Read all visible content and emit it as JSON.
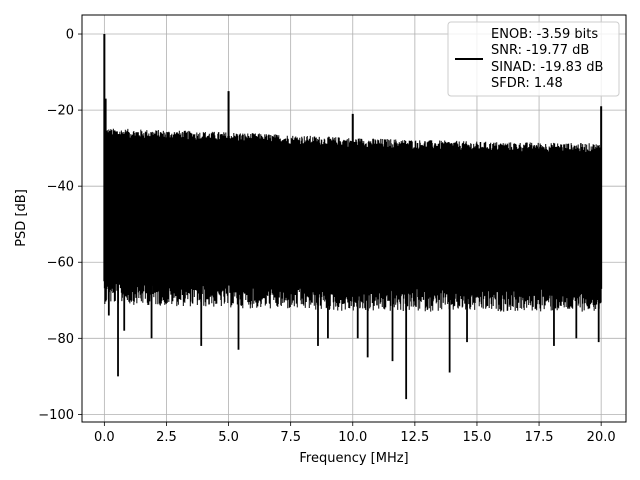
{
  "chart_data": {
    "type": "line",
    "title": "",
    "xlabel": "Frequency [MHz]",
    "ylabel": "PSD [dB]",
    "xlim": [
      -0.9,
      21.0
    ],
    "ylim": [
      -102,
      5
    ],
    "x_ticks": [
      0.0,
      2.5,
      5.0,
      7.5,
      10.0,
      12.5,
      15.0,
      17.5,
      20.0
    ],
    "x_tick_labels": [
      "0.0",
      "2.5",
      "5.0",
      "7.5",
      "10.0",
      "12.5",
      "15.0",
      "17.5",
      "20.0"
    ],
    "y_ticks": [
      0,
      -20,
      -40,
      -60,
      -80,
      -100
    ],
    "y_tick_labels": [
      "0",
      "−20",
      "−40",
      "−60",
      "−80",
      "−100"
    ],
    "grid": true,
    "line_color": "#000000",
    "legend": {
      "placement": "top-right",
      "entries": [
        "ENOB: -3.59 bits",
        "SNR: -19.77 dB",
        "SINAD: -19.83 dB",
        "SFDR: 1.48"
      ]
    },
    "series": [
      {
        "noise_floor_upper_envelope": {
          "x": [
            0.0,
            5.0,
            10.0,
            15.0,
            20.0
          ],
          "y": [
            -26,
            -27,
            -28.5,
            -29.5,
            -30
          ]
        },
        "noise_floor_lower_envelope": {
          "x": [
            0.0,
            5.0,
            10.0,
            15.0,
            20.0
          ],
          "y": [
            -65,
            -66,
            -67,
            -67,
            -67
          ]
        },
        "peaks": [
          {
            "x": 0.0,
            "y": 0
          },
          {
            "x": 0.05,
            "y": -17
          },
          {
            "x": 5.0,
            "y": -15
          },
          {
            "x": 10.0,
            "y": -21
          },
          {
            "x": 20.0,
            "y": -19
          }
        ],
        "dips": [
          {
            "x": 0.18,
            "y": -74
          },
          {
            "x": 0.55,
            "y": -90
          },
          {
            "x": 0.8,
            "y": -78
          },
          {
            "x": 1.9,
            "y": -80
          },
          {
            "x": 3.9,
            "y": -82
          },
          {
            "x": 5.4,
            "y": -83
          },
          {
            "x": 8.6,
            "y": -82
          },
          {
            "x": 9.0,
            "y": -80
          },
          {
            "x": 10.2,
            "y": -80
          },
          {
            "x": 10.6,
            "y": -85
          },
          {
            "x": 11.6,
            "y": -86
          },
          {
            "x": 12.15,
            "y": -96
          },
          {
            "x": 13.9,
            "y": -89
          },
          {
            "x": 14.6,
            "y": -81
          },
          {
            "x": 18.1,
            "y": -82
          },
          {
            "x": 19.0,
            "y": -80
          },
          {
            "x": 19.9,
            "y": -81
          }
        ]
      }
    ]
  }
}
